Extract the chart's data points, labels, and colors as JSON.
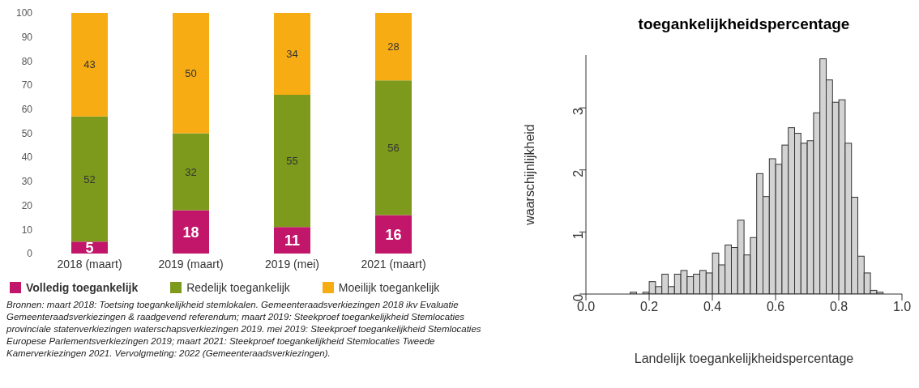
{
  "chart_data": [
    {
      "type": "bar",
      "stacked": true,
      "categories": [
        "2018 (maart)",
        "2019 (maart)",
        "2019 (mei)",
        "2021 (maart)"
      ],
      "series": [
        {
          "name": "Volledig toegankelijk",
          "color": "#c2166b",
          "values": [
            5,
            18,
            11,
            16
          ]
        },
        {
          "name": "Redelijk toegankelijk",
          "color": "#7d9a1c",
          "values": [
            52,
            32,
            55,
            56
          ]
        },
        {
          "name": "Moeilijk toegankelijk",
          "color": "#f8ac14",
          "values": [
            43,
            50,
            34,
            28
          ]
        }
      ],
      "ylim": [
        0,
        100
      ],
      "yticks": [
        0,
        10,
        20,
        30,
        40,
        50,
        60,
        70,
        80,
        90,
        100
      ],
      "grid": false,
      "legend": "bottom",
      "data_labels": true,
      "annotations": [
        "Bronnen: maart 2018: Toetsing toegankelijkheid stemlokalen. Gemeenteraadsverkiezingen 2018 ikv Evaluatie Gemeenteraadsverkiezingen & raadgevend referendum; maart 2019: Steekproef toegankelijkheid Stemlocaties provinciale statenverkiezingen waterschapsverkiezingen 2019. mei 2019: Steekproef toegankelijkheid Stemlocaties Europese Parlementsverkiezingen 2019; maart 2021: Steekproef toegankelijkheid Stemlocaties Tweede Kamerverkiezingen 2021. Vervolgmeting: 2022 (Gemeenteraadsverkiezingen)."
      ]
    },
    {
      "type": "histogram",
      "title": "toegankelijkheidspercentage",
      "xlabel": "Landelijk toegankelijkheidspercentage",
      "ylabel": "waarschijnlijkheid",
      "color": "#d3d3d3",
      "bins": [
        0.14,
        0.16,
        0.18,
        0.2,
        0.22,
        0.24,
        0.26,
        0.28,
        0.3,
        0.32,
        0.34,
        0.36,
        0.38,
        0.4,
        0.42,
        0.44,
        0.46,
        0.48,
        0.5,
        0.52,
        0.54,
        0.56,
        0.58,
        0.6,
        0.62,
        0.64,
        0.66,
        0.68,
        0.7,
        0.72,
        0.74,
        0.76,
        0.78,
        0.8,
        0.82,
        0.84,
        0.86,
        0.88,
        0.9,
        0.92,
        0.94
      ],
      "values": [
        0.03,
        0,
        0.03,
        0.2,
        0.12,
        0.32,
        0.12,
        0.32,
        0.38,
        0.28,
        0.32,
        0.38,
        0.34,
        0.66,
        0.47,
        0.79,
        0.75,
        1.19,
        0.63,
        0.91,
        1.94,
        1.57,
        2.18,
        2.09,
        2.4,
        2.68,
        2.59,
        2.43,
        2.47,
        2.92,
        3.79,
        3.45,
        3.09,
        3.13,
        2.43,
        1.56,
        0.61,
        0.34,
        0.06,
        0.03
      ],
      "xlim": [
        0,
        1
      ],
      "xticks": [
        {
          "value": 0,
          "label": "0.0"
        },
        {
          "value": 0.2,
          "label": "0.2"
        },
        {
          "value": 0.4,
          "label": "0.4"
        },
        {
          "value": 0.6,
          "label": "0.6"
        },
        {
          "value": 0.8,
          "label": "0.8"
        },
        {
          "value": 1,
          "label": "1.0"
        }
      ],
      "ylim": [
        0,
        3.85
      ],
      "yticks": [
        0,
        1,
        2,
        3
      ],
      "grid": false
    }
  ]
}
